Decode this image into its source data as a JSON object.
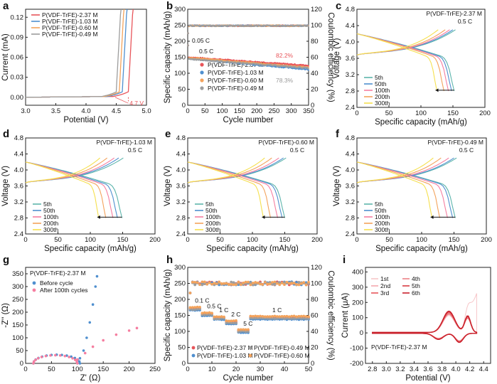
{
  "figure": {
    "description_panels": [
      "a",
      "b",
      "c",
      "d",
      "e",
      "f",
      "g",
      "h",
      "i"
    ]
  },
  "colors": {
    "red": "#e8555a",
    "blue": "#4f8fcf",
    "orange": "#f3a35c",
    "gray": "#9d9d9d",
    "yellow": "#f5e04f",
    "pink": "#f57ea0",
    "teal": "#5db5ac",
    "darkred": "#c9202b"
  },
  "chart_data": [
    {
      "panel": "a",
      "type": "line",
      "xlabel": "Potential (V)",
      "ylabel": "Current (mA)",
      "xlim": [
        3.0,
        5.0
      ],
      "ylim": [
        -0.012,
        0.132
      ],
      "xticks": [
        "3.0",
        "3.5",
        "4.0",
        "4.5",
        "5.0"
      ],
      "yticks": [
        "0.00",
        "0.03",
        "0.06",
        "0.09",
        "0.12"
      ],
      "annotation": "4.7 V",
      "series": [
        {
          "name": "P(VDF-TrFE)-2.37 M",
          "color": "#e8555a",
          "onset": 4.7
        },
        {
          "name": "P(VDF-TrFE)-1.03 M",
          "color": "#4f8fcf",
          "onset": 4.6
        },
        {
          "name": "P(VDF-TrFE)-0.60 M",
          "color": "#f3a35c",
          "onset": 4.55
        },
        {
          "name": "P(VDF-TrFE)-0.49 M",
          "color": "#9d9d9d",
          "onset": 4.5
        }
      ]
    },
    {
      "panel": "b",
      "type": "scatter",
      "xlabel": "Cycle number",
      "ylabel": "Specific capacity (mAh/g)",
      "y2label": "Coulombic efficiency (%)",
      "xlim": [
        0,
        350
      ],
      "ylim": [
        0,
        300
      ],
      "y2lim": [
        0,
        120
      ],
      "xticks": [
        "0",
        "50",
        "100",
        "150",
        "200",
        "250",
        "300",
        "350"
      ],
      "yticks": [
        "0",
        "50",
        "100",
        "150",
        "200",
        "250",
        "300"
      ],
      "y2ticks": [
        "0",
        "20",
        "40",
        "60",
        "80",
        "100",
        "120"
      ],
      "annotations": [
        "0.05 C",
        "0.5 C",
        "82.2%",
        "78.3%"
      ],
      "series": [
        {
          "name": "P(VDF-TrFE)-2.37 M",
          "color": "#e8555a",
          "start": 150,
          "end": 124
        },
        {
          "name": "P(VDF-TrFE)-1.03 M",
          "color": "#4f8fcf",
          "start": 146,
          "end": 112
        },
        {
          "name": "P(VDF-TrFE)-0.60 M",
          "color": "#f3a35c",
          "start": 149,
          "end": 118
        },
        {
          "name": "P(VDF-TrFE)-0.49 M",
          "color": "#9d9d9d",
          "start": 145,
          "end": 116
        }
      ],
      "coulombic_efficiency": 100
    },
    {
      "panel": "c",
      "type": "line",
      "title": "P(VDF-TrFE)-2.37 M",
      "rate": "0.5 C",
      "xlabel": "Specific capacity (mAh/g)",
      "ylabel": "Voltage (V)",
      "xlim": [
        0,
        200
      ],
      "ylim": [
        2.4,
        4.8
      ],
      "xticks": [
        "0",
        "50",
        "100",
        "150",
        "200"
      ],
      "yticks": [
        "2.4",
        "2.8",
        "3.2",
        "3.6",
        "4.0",
        "4.4",
        "4.8"
      ],
      "series": [
        {
          "name": "5th",
          "color": "#5db5ac",
          "capacity": 152
        },
        {
          "name": "50th",
          "color": "#4f8fcf",
          "capacity": 148
        },
        {
          "name": "100th",
          "color": "#f57ea0",
          "capacity": 143
        },
        {
          "name": "200th",
          "color": "#f3a35c",
          "capacity": 136
        },
        {
          "name": "300th",
          "color": "#f5e04f",
          "capacity": 125
        }
      ]
    },
    {
      "panel": "d",
      "type": "line",
      "title": "P(VDF-TrFE)-1.03 M",
      "rate": "0.5 C",
      "xlabel": "Specific capacity (mAh/g)",
      "ylabel": "Voltage (V)",
      "xlim": [
        0,
        200
      ],
      "ylim": [
        2.4,
        4.8
      ],
      "xticks": [
        "0",
        "50",
        "100",
        "150",
        "200"
      ],
      "yticks": [
        "2.4",
        "2.8",
        "3.2",
        "3.6",
        "4.0",
        "4.4",
        "4.8"
      ],
      "series": [
        {
          "name": "5th",
          "color": "#5db5ac",
          "capacity": 149
        },
        {
          "name": "50th",
          "color": "#4f8fcf",
          "capacity": 142
        },
        {
          "name": "100th",
          "color": "#f57ea0",
          "capacity": 135
        },
        {
          "name": "200th",
          "color": "#f3a35c",
          "capacity": 124
        },
        {
          "name": "300th",
          "color": "#f5e04f",
          "capacity": 113
        }
      ]
    },
    {
      "panel": "e",
      "type": "line",
      "title": "P(VDF-TrFE)-0.60 M",
      "rate": "0.5 C",
      "xlabel": "Specific capacity (mAh/g)",
      "ylabel": "Voltage (V)",
      "xlim": [
        0,
        200
      ],
      "ylim": [
        2.4,
        4.8
      ],
      "xticks": [
        "0",
        "50",
        "100",
        "150",
        "200"
      ],
      "yticks": [
        "2.4",
        "2.8",
        "3.2",
        "3.6",
        "4.0",
        "4.4",
        "4.8"
      ],
      "series": [
        {
          "name": "5th",
          "color": "#5db5ac",
          "capacity": 150
        },
        {
          "name": "50th",
          "color": "#4f8fcf",
          "capacity": 146
        },
        {
          "name": "100th",
          "color": "#f57ea0",
          "capacity": 139
        },
        {
          "name": "200th",
          "color": "#f3a35c",
          "capacity": 128
        },
        {
          "name": "300th",
          "color": "#f5e04f",
          "capacity": 117
        }
      ]
    },
    {
      "panel": "f",
      "type": "line",
      "title": "P(VDF-TrFE)-0.49 M",
      "rate": "0.5 C",
      "xlabel": "Specific capacity (mAh/g)",
      "ylabel": "Voltage (V)",
      "xlim": [
        0,
        200
      ],
      "ylim": [
        2.4,
        4.8
      ],
      "xticks": [
        "0",
        "50",
        "100",
        "150",
        "200"
      ],
      "yticks": [
        "2.4",
        "2.8",
        "3.2",
        "3.6",
        "4.0",
        "4.4",
        "4.8"
      ],
      "series": [
        {
          "name": "5th",
          "color": "#5db5ac",
          "capacity": 152
        },
        {
          "name": "50th",
          "color": "#4f8fcf",
          "capacity": 148
        },
        {
          "name": "100th",
          "color": "#f57ea0",
          "capacity": 140
        },
        {
          "name": "200th",
          "color": "#f3a35c",
          "capacity": 128
        },
        {
          "name": "300th",
          "color": "#f5e04f",
          "capacity": 116
        }
      ]
    },
    {
      "panel": "g",
      "type": "scatter",
      "title": "P(VDF-TrFE)-2.37 M",
      "xlabel": "Z' (Ω)",
      "ylabel": "-Z'' (Ω)",
      "xlim": [
        0,
        250
      ],
      "ylim": [
        0,
        375
      ],
      "xticks": [
        "0",
        "50",
        "100",
        "150",
        "200",
        "250"
      ],
      "yticks": [
        "0",
        "50",
        "100",
        "150",
        "200",
        "250",
        "300",
        "350"
      ],
      "series": [
        {
          "name": "Before cycle",
          "color": "#4f8fcf",
          "r0": 15,
          "r1": 105,
          "tail": [
            [
              105,
              20
            ],
            [
              112,
              50
            ],
            [
              118,
              100
            ],
            [
              124,
              160
            ],
            [
              130,
              230
            ],
            [
              135,
              300
            ],
            [
              138,
              340
            ]
          ]
        },
        {
          "name": "After 100th cycles",
          "color": "#f57ea0",
          "r0": 15,
          "r1": 100,
          "tail": [
            [
              100,
              15
            ],
            [
              115,
              40
            ],
            [
              130,
              65
            ],
            [
              150,
              90
            ],
            [
              175,
              112
            ],
            [
              200,
              128
            ],
            [
              215,
              138
            ]
          ]
        }
      ]
    },
    {
      "panel": "h",
      "type": "scatter",
      "xlabel": "Cycle number",
      "ylabel": "Specific capacity (mAh/g)",
      "y2label": "Coulombic efficiency (%)",
      "xlim": [
        0,
        50
      ],
      "ylim": [
        0,
        300
      ],
      "y2lim": [
        0,
        120
      ],
      "xticks": [
        "0",
        "10",
        "20",
        "30",
        "40",
        "50"
      ],
      "yticks": [
        "0",
        "50",
        "100",
        "150",
        "200",
        "250",
        "300"
      ],
      "y2ticks": [
        "0",
        "20",
        "40",
        "60",
        "80",
        "100",
        "120"
      ],
      "rate_labels": [
        "0.1 C",
        "0.5 C",
        "1 C",
        "2 C",
        "5 C",
        "1 C"
      ],
      "rate_steps": [
        {
          "from": 1,
          "to": 5,
          "cap": 172
        },
        {
          "from": 6,
          "to": 10,
          "cap": 155
        },
        {
          "from": 11,
          "to": 15,
          "cap": 143
        },
        {
          "from": 16,
          "to": 20,
          "cap": 130
        },
        {
          "from": 21,
          "to": 25,
          "cap": 103
        },
        {
          "from": 26,
          "to": 50,
          "cap": 144
        }
      ],
      "series": [
        {
          "name": "P(VDF-TrFE)-2.37 M",
          "color": "#e8555a",
          "offset": 0
        },
        {
          "name": "P(VDF-TrFE)-1.03 M",
          "color": "#4f8fcf",
          "offset": -6
        },
        {
          "name": "P(VDF-TrFE)-0.49 M",
          "color": "#9d9d9d",
          "offset": -3
        },
        {
          "name": "P(VDF-TrFE)-0.60 M",
          "color": "#f3a35c",
          "offset": 3
        }
      ],
      "coulombic_efficiency": 100
    },
    {
      "panel": "i",
      "type": "line",
      "title": "P(VDF-TrFE)-2.37 M",
      "xlabel": "Potential (V)",
      "ylabel": "Current (μA)",
      "xlim": [
        2.7,
        4.5
      ],
      "ylim": [
        -200,
        430
      ],
      "xticks": [
        "2.8",
        "3.0",
        "3.2",
        "3.4",
        "3.6",
        "3.8",
        "4.0",
        "4.2",
        "4.4"
      ],
      "yticks": [
        "-200",
        "-100",
        "0",
        "100",
        "200",
        "300",
        "400"
      ],
      "series": [
        {
          "name": "1st",
          "color": "#f7c6c8"
        },
        {
          "name": "2nd",
          "color": "#f3a9ad"
        },
        {
          "name": "3rd",
          "color": "#e8555a"
        },
        {
          "name": "4th",
          "color": "#ec8086"
        },
        {
          "name": "5th",
          "color": "#d83a42"
        },
        {
          "name": "6th",
          "color": "#c9202b"
        }
      ]
    }
  ]
}
